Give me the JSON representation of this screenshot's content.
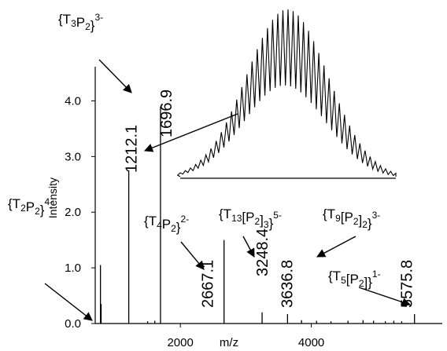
{
  "chart_data": {
    "type": "line",
    "title": "",
    "xlabel": "m/z",
    "ylabel": "Intensity",
    "xlim": [
      700,
      6000
    ],
    "ylim": [
      0,
      4.5
    ],
    "x_ticks": [
      2000,
      4000
    ],
    "x_tick_labels": [
      "2000",
      "4000"
    ],
    "y_ticks": [
      0,
      1,
      2,
      3,
      4
    ],
    "y_tick_labels": [
      "0.0",
      "1.0",
      "2.0",
      "3.0",
      "4.0"
    ],
    "peaks": [
      {
        "mz": 780,
        "intensity": 1.05
      },
      {
        "mz": 790,
        "intensity": 0.35
      },
      {
        "mz": 1212.1,
        "intensity": 2.75,
        "label": "1212.1"
      },
      {
        "mz": 1696.9,
        "intensity": 3.9,
        "label": "1696.9"
      },
      {
        "mz": 2667.1,
        "intensity": 1.5,
        "label": "2667.1"
      },
      {
        "mz": 3248.4,
        "intensity": 0.2,
        "label": "3248.4"
      },
      {
        "mz": 3636.8,
        "intensity": 0.17,
        "label": "3636.8"
      },
      {
        "mz": 5575.8,
        "intensity": 0.17,
        "label": "5575.8"
      },
      {
        "mz": 1500,
        "intensity": 0.04
      },
      {
        "mz": 1610,
        "intensity": 0.05
      },
      {
        "mz": 3850,
        "intensity": 0.06
      },
      {
        "mz": 4080,
        "intensity": 0.05
      },
      {
        "mz": 4300,
        "intensity": 0.04
      },
      {
        "mz": 4560,
        "intensity": 0.05
      },
      {
        "mz": 4790,
        "intensity": 0.06
      },
      {
        "mz": 4950,
        "intensity": 0.05
      },
      {
        "mz": 5130,
        "intensity": 0.04
      },
      {
        "mz": 5260,
        "intensity": 0.05
      },
      {
        "mz": 5380,
        "intensity": 0.04
      }
    ],
    "annotations": [
      {
        "parts": [
          [
            "{T",
            ""
          ],
          [
            "2",
            "sub"
          ],
          [
            "P",
            ""
          ],
          [
            "2",
            "sub"
          ],
          [
            "}",
            ""
          ],
          [
            "4-",
            "sup"
          ]
        ]
      },
      {
        "parts": [
          [
            "{T",
            ""
          ],
          [
            "3",
            "sub"
          ],
          [
            "P",
            ""
          ],
          [
            "2",
            "sub"
          ],
          [
            "}",
            ""
          ],
          [
            "3-",
            "sup"
          ]
        ]
      },
      {
        "parts": [
          [
            "{T",
            ""
          ],
          [
            "4",
            "sub"
          ],
          [
            "P",
            ""
          ],
          [
            "2",
            "sub"
          ],
          [
            "}",
            ""
          ],
          [
            "2-",
            "sup"
          ]
        ]
      },
      {
        "parts": [
          [
            "{T",
            ""
          ],
          [
            "13",
            "sub"
          ],
          [
            "[P",
            ""
          ],
          [
            "2",
            "sub"
          ],
          [
            "]",
            ""
          ],
          [
            "3",
            "sub"
          ],
          [
            "}",
            ""
          ],
          [
            "5-",
            "sup"
          ]
        ]
      },
      {
        "parts": [
          [
            "{T",
            ""
          ],
          [
            "9",
            "sub"
          ],
          [
            "[P",
            ""
          ],
          [
            "2",
            "sub"
          ],
          [
            "]",
            ""
          ],
          [
            "2",
            "sub"
          ],
          [
            "}",
            ""
          ],
          [
            "3-",
            "sup"
          ]
        ]
      },
      {
        "parts": [
          [
            "{T",
            ""
          ],
          [
            "5",
            "sub"
          ],
          [
            "[P",
            ""
          ],
          [
            "2",
            "sub"
          ],
          [
            "]}",
            ""
          ],
          [
            "1-",
            "sup"
          ]
        ]
      }
    ],
    "inset": {
      "type": "isotope-envelope"
    }
  }
}
